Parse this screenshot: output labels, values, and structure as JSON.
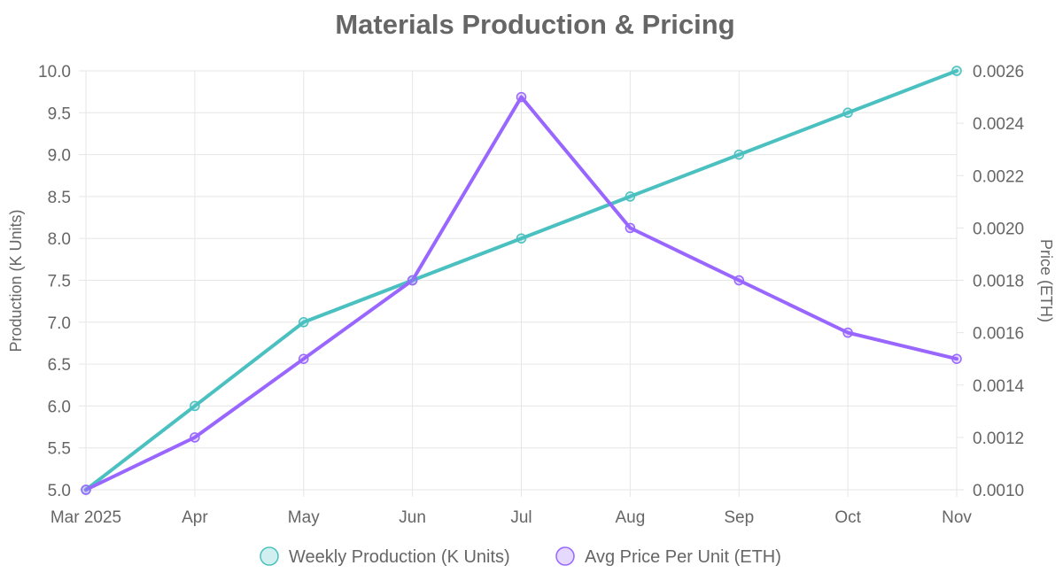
{
  "chart_data": {
    "type": "line",
    "title": "Materials Production & Pricing",
    "categories": [
      "Mar 2025",
      "Apr",
      "May",
      "Jun",
      "Jul",
      "Aug",
      "Sep",
      "Oct",
      "Nov"
    ],
    "y_left": {
      "label": "Production (K Units)",
      "range": [
        5.0,
        10.0
      ],
      "ticks": [
        "5.0",
        "5.5",
        "6.0",
        "6.5",
        "7.0",
        "7.5",
        "8.0",
        "8.5",
        "9.0",
        "9.5",
        "10.0"
      ]
    },
    "y_right": {
      "label": "Price (ETH)",
      "range": [
        0.001,
        0.0026
      ],
      "ticks": [
        "0.0010",
        "0.0012",
        "0.0014",
        "0.0016",
        "0.0018",
        "0.0020",
        "0.0022",
        "0.0024",
        "0.0026"
      ]
    },
    "series": [
      {
        "name": "Weekly Production (K Units)",
        "axis": "left",
        "color": "#4bc0c0",
        "values": [
          5.0,
          6.0,
          7.0,
          7.5,
          8.0,
          8.5,
          9.0,
          9.5,
          10.0
        ]
      },
      {
        "name": "Avg Price Per Unit (ETH)",
        "axis": "right",
        "color": "#9966ff",
        "values": [
          0.001,
          0.0012,
          0.0015,
          0.0018,
          0.0025,
          0.002,
          0.0018,
          0.0016,
          0.0015
        ]
      }
    ],
    "grid": true,
    "legend_position": "bottom"
  }
}
